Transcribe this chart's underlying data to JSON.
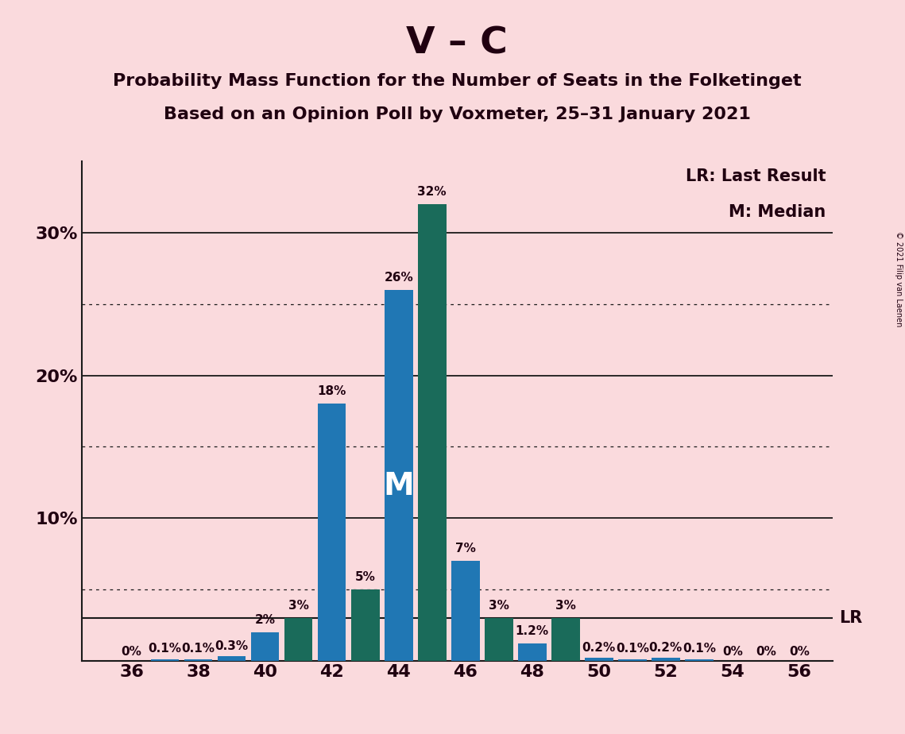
{
  "title_main": "V – C",
  "subtitle1": "Probability Mass Function for the Number of Seats in the Folketinget",
  "subtitle2": "Based on an Opinion Poll by Voxmeter, 25–31 January 2021",
  "copyright": "© 2021 Filip van Laenen",
  "background_color": "#fadadd",
  "seats": [
    36,
    37,
    38,
    39,
    40,
    41,
    42,
    43,
    44,
    45,
    46,
    47,
    48,
    49,
    50,
    51,
    52,
    53,
    54,
    55,
    56
  ],
  "values": [
    0.0,
    0.1,
    0.1,
    0.3,
    2.0,
    3.0,
    18.0,
    5.0,
    26.0,
    32.0,
    7.0,
    3.0,
    1.2,
    3.0,
    0.2,
    0.1,
    0.2,
    0.1,
    0.0,
    0.0,
    0.0
  ],
  "labels": [
    "0%",
    "0.1%",
    "0.1%",
    "0.3%",
    "2%",
    "3%",
    "18%",
    "5%",
    "26%",
    "32%",
    "7%",
    "3%",
    "1.2%",
    "3%",
    "0.2%",
    "0.1%",
    "0.2%",
    "0.1%",
    "0%",
    "0%",
    "0%"
  ],
  "bar_colors": [
    "#2077b4",
    "#2077b4",
    "#2077b4",
    "#2077b4",
    "#2077b4",
    "#1a6b5a",
    "#2077b4",
    "#1a6b5a",
    "#2077b4",
    "#1a6b5a",
    "#2077b4",
    "#1a6b5a",
    "#2077b4",
    "#1a6b5a",
    "#2077b4",
    "#2077b4",
    "#2077b4",
    "#2077b4",
    "#2077b4",
    "#2077b4",
    "#2077b4"
  ],
  "median_seat": 44,
  "lr_value": 3.0,
  "ylim_max": 35,
  "major_yticks": [
    10,
    20,
    30
  ],
  "minor_yticks": [
    5,
    15,
    25
  ],
  "legend_lr": "LR: Last Result",
  "legend_m": "M: Median",
  "axis_color": "#1a1a1a",
  "text_color": "#200010",
  "blue_color": "#2077b4",
  "teal_color": "#1a6b5a",
  "bar_width": 0.85,
  "label_fontsize": 11,
  "title_fontsize": 34,
  "subtitle_fontsize": 16,
  "tick_fontsize": 16,
  "legend_fontsize": 15
}
